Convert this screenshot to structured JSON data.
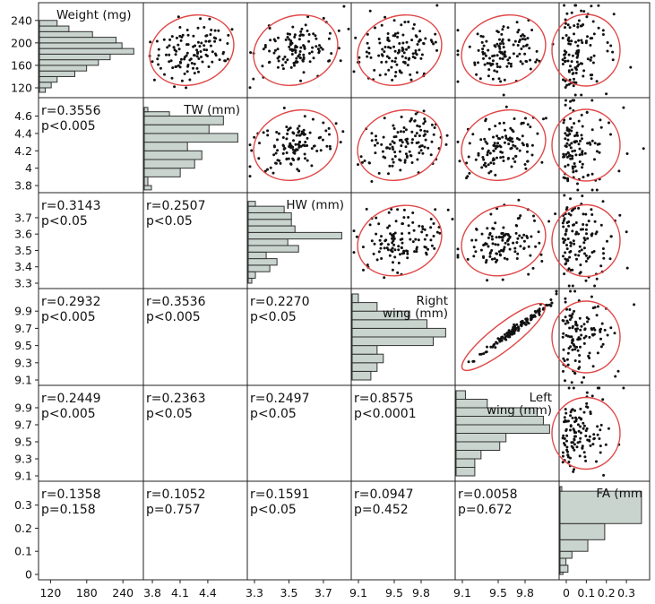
{
  "chart_data": {
    "type": "scatter-matrix",
    "variables": [
      {
        "id": "weight",
        "label": "Weight (mg)",
        "label_lines": [
          "Weight (mg)"
        ],
        "ticks": [
          "120",
          "160",
          "200",
          "240"
        ],
        "bottom_ticks": [
          "120",
          "180",
          "240"
        ],
        "range": [
          112,
          262
        ],
        "hist": {
          "bins": [
            [
              112,
              120
            ],
            [
              120,
              130
            ],
            [
              130,
              140
            ],
            [
              140,
              150
            ],
            [
              150,
              160
            ],
            [
              160,
              170
            ],
            [
              170,
              180
            ],
            [
              180,
              190
            ],
            [
              190,
              200
            ],
            [
              200,
              210
            ],
            [
              210,
              220
            ],
            [
              220,
              230
            ],
            [
              230,
              240
            ]
          ],
          "counts": [
            1,
            2,
            3,
            6,
            8,
            10,
            12,
            16,
            14,
            13,
            9,
            5,
            3
          ]
        }
      },
      {
        "id": "tw",
        "label": "TW (mm)",
        "label_lines": [
          "TW (mm)"
        ],
        "ticks": [
          "3.8",
          "4",
          "4.2",
          "4.4",
          "4.6"
        ],
        "bottom_ticks": [
          "3.8",
          "4.1",
          "4.4"
        ],
        "range": [
          3.78,
          4.75
        ],
        "hist": {
          "bins": [
            [
              3.75,
              3.8
            ],
            [
              3.8,
              3.9
            ],
            [
              3.9,
              4.0
            ],
            [
              4.0,
              4.1
            ],
            [
              4.1,
              4.2
            ],
            [
              4.2,
              4.3
            ],
            [
              4.3,
              4.4
            ],
            [
              4.4,
              4.5
            ],
            [
              4.5,
              4.6
            ],
            [
              4.6,
              4.65
            ],
            [
              4.65,
              4.7
            ]
          ],
          "counts": [
            2,
            1,
            10,
            14,
            16,
            12,
            26,
            18,
            22,
            7,
            1
          ]
        }
      },
      {
        "id": "hw",
        "label": "HW (mm)",
        "label_lines": [
          "HW (mm)"
        ],
        "ticks": [
          "3.3",
          "3.4",
          "3.5",
          "3.6",
          "3.7"
        ],
        "bottom_ticks": [
          "3.3",
          "3.5",
          "3.7"
        ],
        "range": [
          3.3,
          3.82
        ],
        "hist": {
          "bins": [
            [
              3.3,
              3.33
            ],
            [
              3.33,
              3.37
            ],
            [
              3.37,
              3.41
            ],
            [
              3.41,
              3.45
            ],
            [
              3.45,
              3.49
            ],
            [
              3.49,
              3.53
            ],
            [
              3.53,
              3.57
            ],
            [
              3.57,
              3.61
            ],
            [
              3.61,
              3.65
            ],
            [
              3.65,
              3.69
            ],
            [
              3.69,
              3.73
            ],
            [
              3.73,
              3.77
            ],
            [
              3.77,
              3.8
            ]
          ],
          "counts": [
            1,
            2,
            6,
            8,
            5,
            14,
            11,
            26,
            13,
            12,
            12,
            10,
            2
          ]
        }
      },
      {
        "id": "right_wing",
        "label": "Right wing (mm)",
        "label_lines": [
          "Right",
          "wing (mm)"
        ],
        "ticks": [
          "9.1",
          "9.3",
          "9.5",
          "9.7",
          "9.9"
        ],
        "bottom_ticks": [
          "9.1",
          "9.5",
          "9.8"
        ],
        "range": [
          9.1,
          10.1
        ],
        "hist": {
          "bins": [
            [
              9.1,
              9.2
            ],
            [
              9.2,
              9.3
            ],
            [
              9.3,
              9.4
            ],
            [
              9.4,
              9.5
            ],
            [
              9.5,
              9.6
            ],
            [
              9.6,
              9.7
            ],
            [
              9.7,
              9.8
            ],
            [
              9.8,
              9.9
            ],
            [
              9.9,
              10.0
            ],
            [
              10.0,
              10.1
            ]
          ],
          "counts": [
            6,
            8,
            10,
            8,
            26,
            30,
            24,
            18,
            8,
            2
          ]
        }
      },
      {
        "id": "left_wing",
        "label": "Left wing (mm)",
        "label_lines": [
          "Left",
          "wing (mm)"
        ],
        "ticks": [
          "9.1",
          "9.3",
          "9.5",
          "9.7",
          "9.9"
        ],
        "bottom_ticks": [
          "9.1",
          "9.5",
          "9.8"
        ],
        "range": [
          9.1,
          10.1
        ],
        "hist": {
          "bins": [
            [
              9.1,
              9.2
            ],
            [
              9.2,
              9.3
            ],
            [
              9.3,
              9.4
            ],
            [
              9.4,
              9.5
            ],
            [
              9.5,
              9.6
            ],
            [
              9.6,
              9.7
            ],
            [
              9.7,
              9.8
            ],
            [
              9.8,
              9.9
            ],
            [
              9.9,
              10.0
            ],
            [
              10.0,
              10.1
            ]
          ],
          "counts": [
            6,
            6,
            8,
            14,
            16,
            30,
            28,
            26,
            10,
            3
          ]
        }
      },
      {
        "id": "fa",
        "label": "FA (mm)",
        "label_lines": [
          "FA (mm"
        ],
        "ticks": [
          "0",
          "0.1",
          "0.2",
          "0.3"
        ],
        "bottom_ticks": [
          "0",
          "0.1",
          "0.2",
          "0.3"
        ],
        "range": [
          0,
          0.38
        ],
        "hist": {
          "bins": [
            [
              0,
              0.01
            ],
            [
              0.01,
              0.04
            ],
            [
              0.04,
              0.07
            ],
            [
              0.07,
              0.1
            ],
            [
              0.1,
              0.15
            ],
            [
              0.15,
              0.22
            ],
            [
              0.22,
              0.36
            ],
            [
              0.36,
              0.38
            ]
          ],
          "counts": [
            3,
            8,
            6,
            12,
            28,
            45,
            82,
            1
          ]
        }
      }
    ],
    "correlations": [
      {
        "row": 1,
        "col": 0,
        "r": "r=0.3556",
        "p": "p<0.005"
      },
      {
        "row": 2,
        "col": 0,
        "r": "r=0.3143",
        "p": "p<0.05"
      },
      {
        "row": 2,
        "col": 1,
        "r": "r=0.2507",
        "p": "p<0.05"
      },
      {
        "row": 3,
        "col": 0,
        "r": "r=0.2932",
        "p": "p<0.005"
      },
      {
        "row": 3,
        "col": 1,
        "r": "r=0.3536",
        "p": "p<0.005"
      },
      {
        "row": 3,
        "col": 2,
        "r": "r=0.2270",
        "p": "p<0.05"
      },
      {
        "row": 4,
        "col": 0,
        "r": "r=0.2449",
        "p": "p<0.005"
      },
      {
        "row": 4,
        "col": 1,
        "r": "r=0.2363",
        "p": "p<0.05"
      },
      {
        "row": 4,
        "col": 2,
        "r": "r=0.2497",
        "p": "p<0.05"
      },
      {
        "row": 4,
        "col": 3,
        "r": "r=0.8575",
        "p": "p<0.0001"
      },
      {
        "row": 5,
        "col": 0,
        "r": "r=0.1358",
        "p": "p=0.158"
      },
      {
        "row": 5,
        "col": 1,
        "r": "r=0.1052",
        "p": "p=0.757"
      },
      {
        "row": 5,
        "col": 2,
        "r": "r=0.1591",
        "p": "p<0.05"
      },
      {
        "row": 5,
        "col": 3,
        "r": "r=0.0947",
        "p": "p=0.452"
      },
      {
        "row": 5,
        "col": 4,
        "r": "r=0.0058",
        "p": "p=0.672"
      }
    ],
    "n_points_per_scatter": 120,
    "ellipse_color": "#e04848",
    "bar_fill": "#c9d4cf",
    "bar_stroke": "#333333",
    "point_color": "#111111",
    "grid": false
  }
}
